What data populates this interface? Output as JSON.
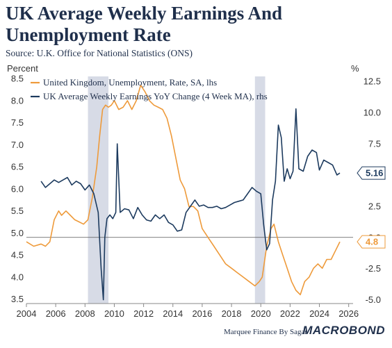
{
  "header": {
    "title": "UK Average Weekly Earnings And Unemployment Rate",
    "source": "Source: U.K. Office for National Statistics (ONS)"
  },
  "footer": {
    "credit": "Marquee Finance By Sagar",
    "brand": "MACROBOND"
  },
  "colors": {
    "unemployment": "#ee9a3a",
    "earnings": "#1c3a5e",
    "recession": "#d7dbe6"
  },
  "chart_data": {
    "type": "line",
    "left_axis": {
      "label": "Percent",
      "range": [
        3.4,
        8.55
      ],
      "ticks": [
        3.5,
        4.0,
        4.5,
        5.0,
        5.5,
        6.0,
        6.5,
        7.0,
        7.5,
        8.0,
        8.5
      ]
    },
    "right_axis": {
      "label": "%",
      "range": [
        -5.3,
        12.9
      ],
      "ticks": [
        -5.0,
        -2.5,
        0.0,
        2.5,
        5.0,
        7.5,
        10.0,
        12.5
      ]
    },
    "x_axis": {
      "range": [
        2004,
        2026.3
      ],
      "ticks": [
        2004,
        2006,
        2008,
        2010,
        2012,
        2014,
        2016,
        2018,
        2020,
        2022,
        2024,
        2026
      ]
    },
    "grid": false,
    "legend_position": "top-left",
    "shaded_periods": [
      [
        2008.2,
        2009.6
      ],
      [
        2019.6,
        2020.3
      ]
    ],
    "series": [
      {
        "name": "United Kingdom, Unemployment, Rate, SA, lhs",
        "axis": "left",
        "last_value_label": "4.8",
        "x": [
          2004.0,
          2004.5,
          2005.0,
          2005.3,
          2005.6,
          2005.9,
          2006.2,
          2006.4,
          2006.7,
          2007.0,
          2007.3,
          2007.6,
          2007.9,
          2008.2,
          2008.5,
          2008.8,
          2009.0,
          2009.2,
          2009.4,
          2009.6,
          2009.8,
          2010.0,
          2010.3,
          2010.6,
          2010.9,
          2011.2,
          2011.5,
          2011.8,
          2012.1,
          2012.4,
          2012.7,
          2013.0,
          2013.3,
          2013.6,
          2013.9,
          2014.2,
          2014.5,
          2014.8,
          2015.1,
          2015.4,
          2015.7,
          2016.0,
          2016.4,
          2016.8,
          2017.2,
          2017.6,
          2018.0,
          2018.4,
          2018.8,
          2019.2,
          2019.6,
          2019.9,
          2020.1,
          2020.4,
          2020.7,
          2020.9,
          2021.2,
          2021.5,
          2021.8,
          2022.1,
          2022.4,
          2022.7,
          2023.0,
          2023.3,
          2023.6,
          2023.9,
          2024.2,
          2024.5,
          2024.8,
          2025.1,
          2025.4
        ],
        "values": [
          4.8,
          4.7,
          4.75,
          4.7,
          4.8,
          5.3,
          5.5,
          5.4,
          5.5,
          5.4,
          5.3,
          5.25,
          5.2,
          5.3,
          5.8,
          6.5,
          7.2,
          7.8,
          7.9,
          7.85,
          7.9,
          8.0,
          7.8,
          7.85,
          8.0,
          7.8,
          8.0,
          8.35,
          8.2,
          8.0,
          7.9,
          7.85,
          7.8,
          7.6,
          7.2,
          6.7,
          6.2,
          6.0,
          5.6,
          5.6,
          5.5,
          5.1,
          4.9,
          4.7,
          4.5,
          4.3,
          4.2,
          4.1,
          4.0,
          3.9,
          3.8,
          3.9,
          4.0,
          4.7,
          5.1,
          5.2,
          4.8,
          4.5,
          4.2,
          3.9,
          3.7,
          3.6,
          3.9,
          4.0,
          4.2,
          4.3,
          4.2,
          4.4,
          4.4,
          4.6,
          4.8
        ]
      },
      {
        "name": "UK Average Weekly Earnings YoY Change (4 Week MA), rhs",
        "axis": "right",
        "last_value_label": "5.16",
        "x": [
          2005.0,
          2005.3,
          2005.6,
          2005.9,
          2006.2,
          2006.5,
          2006.8,
          2007.1,
          2007.4,
          2007.7,
          2008.0,
          2008.3,
          2008.6,
          2008.9,
          2009.1,
          2009.25,
          2009.35,
          2009.5,
          2009.7,
          2009.9,
          2010.1,
          2010.2,
          2010.4,
          2010.7,
          2011.0,
          2011.3,
          2011.6,
          2011.9,
          2012.2,
          2012.5,
          2012.8,
          2013.1,
          2013.4,
          2013.7,
          2014.0,
          2014.3,
          2014.6,
          2014.9,
          2015.2,
          2015.5,
          2015.8,
          2016.1,
          2016.4,
          2016.7,
          2017.0,
          2017.3,
          2017.6,
          2017.9,
          2018.2,
          2018.5,
          2018.8,
          2019.1,
          2019.4,
          2019.7,
          2020.0,
          2020.2,
          2020.4,
          2020.6,
          2020.8,
          2021.0,
          2021.2,
          2021.4,
          2021.6,
          2021.8,
          2022.0,
          2022.2,
          2022.4,
          2022.6,
          2022.9,
          2023.2,
          2023.5,
          2023.8,
          2024.0,
          2024.3,
          2024.6,
          2024.9,
          2025.2,
          2025.4
        ],
        "values": [
          4.5,
          4.0,
          4.3,
          4.6,
          4.4,
          4.6,
          4.8,
          4.2,
          4.5,
          4.3,
          3.8,
          4.2,
          3.5,
          2.0,
          -2.5,
          -5.0,
          0.0,
          1.5,
          1.8,
          1.5,
          2.0,
          7.5,
          2.0,
          2.3,
          2.2,
          1.5,
          2.4,
          1.8,
          1.4,
          1.3,
          1.8,
          1.5,
          1.8,
          1.2,
          1.0,
          0.5,
          0.6,
          2.0,
          2.5,
          3.0,
          2.5,
          2.6,
          2.4,
          2.4,
          2.5,
          2.3,
          2.4,
          2.6,
          2.8,
          2.9,
          3.0,
          3.5,
          4.0,
          3.7,
          3.5,
          1.0,
          -1.0,
          -0.5,
          3.0,
          4.5,
          9.0,
          8.0,
          4.5,
          5.5,
          4.7,
          5.3,
          10.3,
          5.5,
          5.3,
          6.5,
          7.0,
          6.8,
          5.4,
          6.2,
          6.0,
          5.8,
          5.0,
          5.16
        ]
      }
    ]
  }
}
